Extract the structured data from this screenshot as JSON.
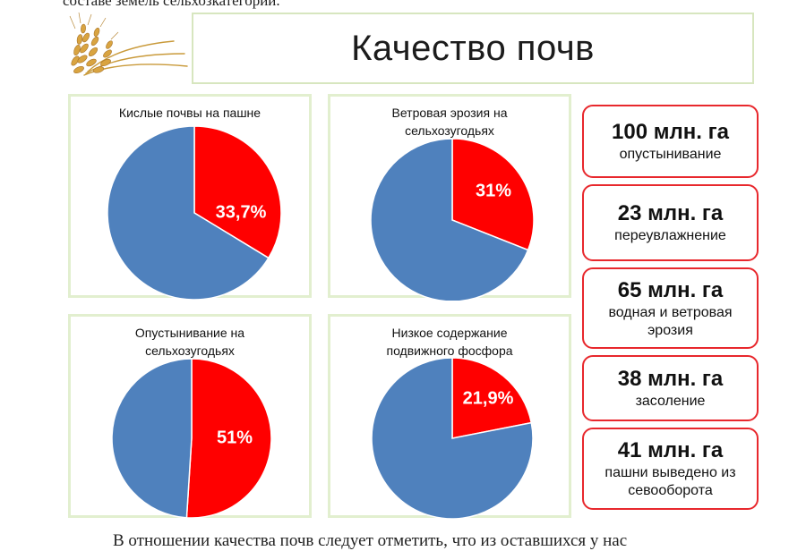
{
  "slide": {
    "top_text": "составе земель сельхозкатегорий.",
    "title": "Качество почв",
    "bottom_text": "В отношении качества почв следует отметить, что из оставшихся у нас"
  },
  "colors": {
    "primary": "#ff0000",
    "secondary": "#4f81bd"
  },
  "chart_data": [
    {
      "type": "pie",
      "title": "Кислые почвы на пашне",
      "slices": [
        {
          "value": 33.7,
          "label": "33,7%",
          "color": "#ff0000"
        },
        {
          "value": 66.3,
          "label": "",
          "color": "#4f81bd"
        }
      ]
    },
    {
      "type": "pie",
      "title": "Ветровая эрозия на сельхозугодьях",
      "slices": [
        {
          "value": 31,
          "label": "31%",
          "color": "#ff0000"
        },
        {
          "value": 69,
          "label": "",
          "color": "#4f81bd"
        }
      ]
    },
    {
      "type": "pie",
      "title": "Опустынивание на сельхозугодьях",
      "slices": [
        {
          "value": 51,
          "label": "51%",
          "color": "#ff0000"
        },
        {
          "value": 49,
          "label": "",
          "color": "#4f81bd"
        }
      ]
    },
    {
      "type": "pie",
      "title": "Низкое содержание подвижного фосфора",
      "slices": [
        {
          "value": 21.9,
          "label": "21,9%",
          "color": "#ff0000"
        },
        {
          "value": 78.1,
          "label": "",
          "color": "#4f81bd"
        }
      ]
    }
  ],
  "stats": [
    {
      "value": "100 млн. га",
      "label": "опустынивание"
    },
    {
      "value": "23 млн. га",
      "label": "переувлажнение"
    },
    {
      "value": "65 млн. га",
      "label": "водная и ветровая эрозия"
    },
    {
      "value": "38 млн. га",
      "label": "засоление"
    },
    {
      "value": "41 млн. га",
      "label": "пашни выведено из севооборота"
    }
  ]
}
